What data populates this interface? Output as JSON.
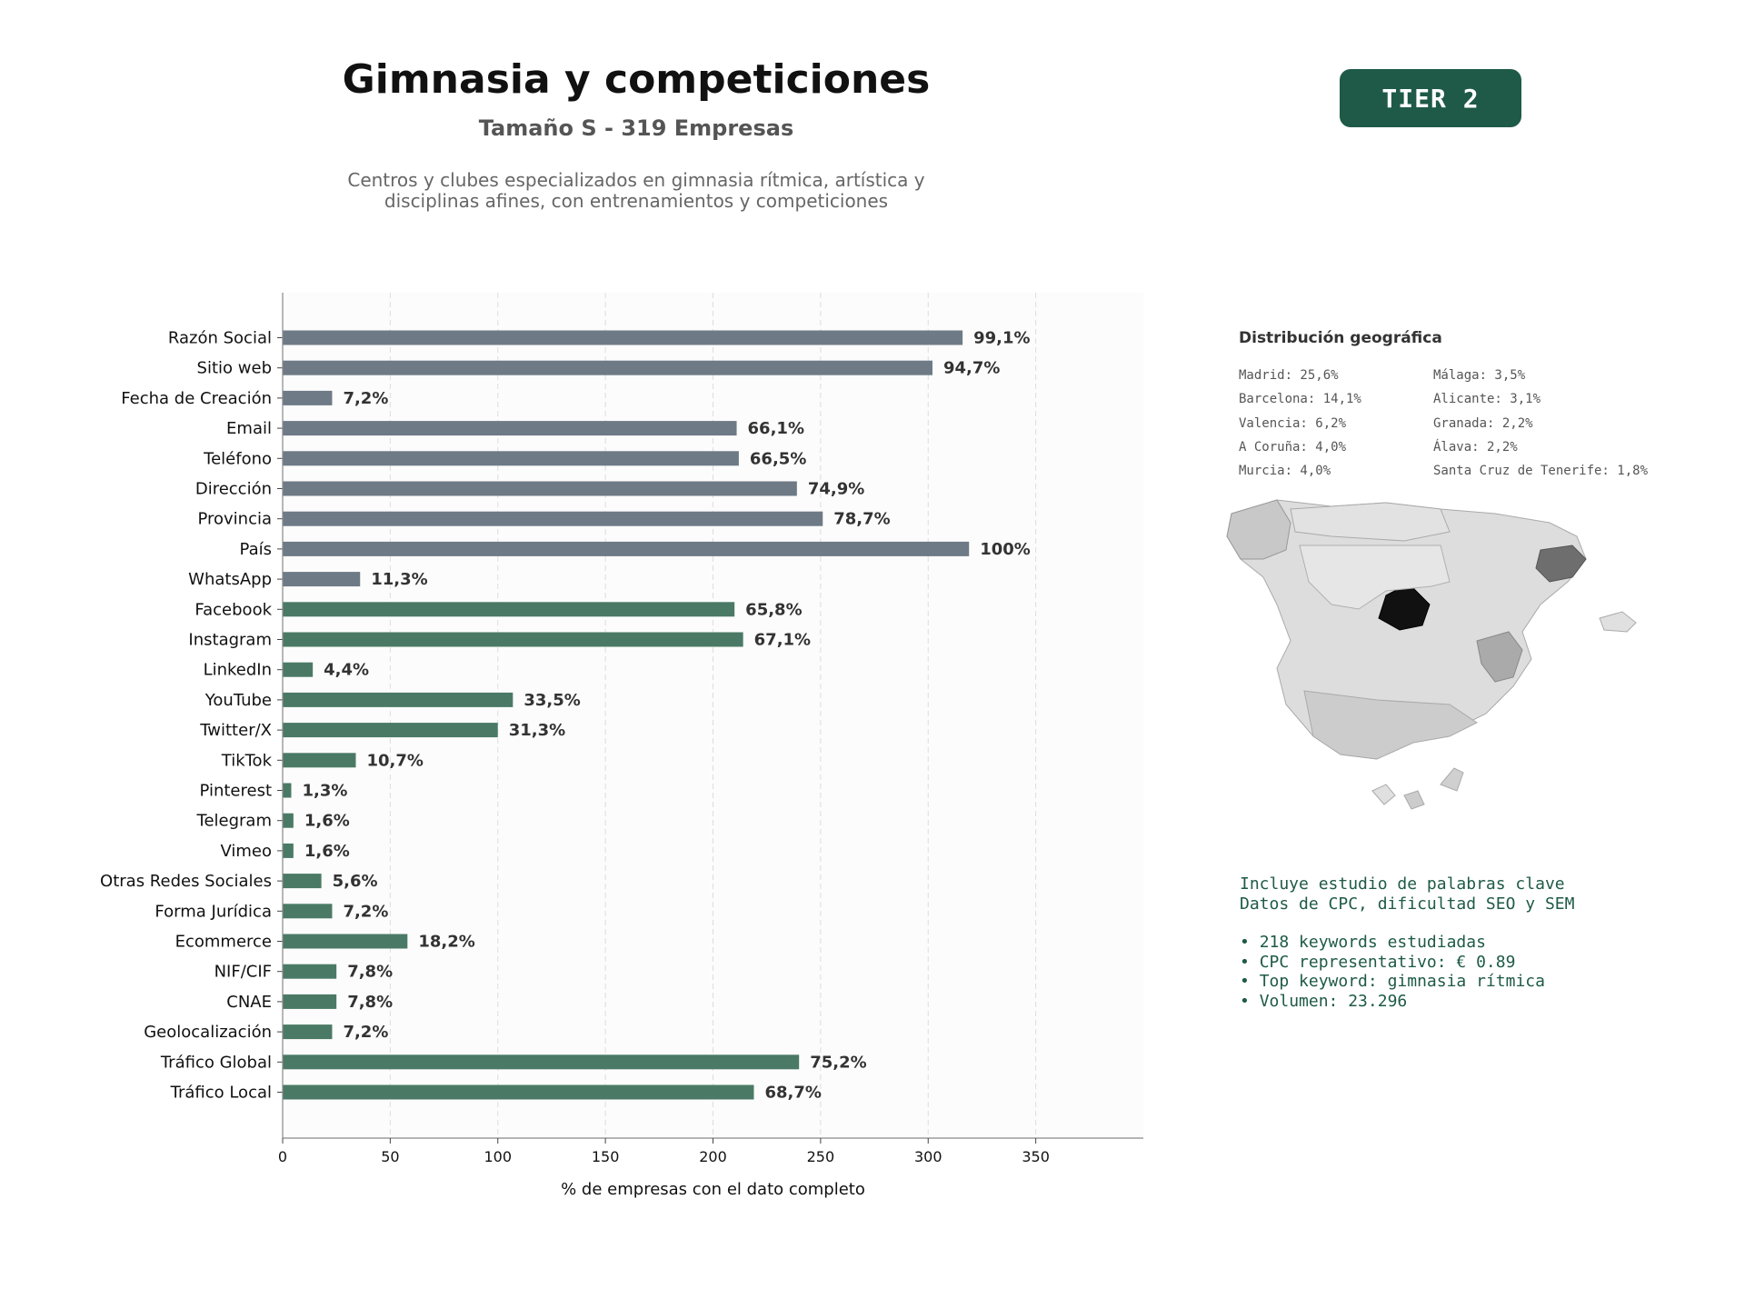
{
  "header": {
    "title": "Gimnasia y competiciones",
    "subtitle": "Tamaño S - 319 Empresas",
    "description_line1": "Centros y clubes especializados en gimnasia rítmica, artística y",
    "description_line2": "disciplinas afines, con entrenamientos y competiciones",
    "tier_badge": "TIER 2"
  },
  "colors": {
    "gray_bar": "#6e7a86",
    "green_bar": "#4a7a65",
    "badge": "#1e5a47",
    "plot_bg": "#fcfcfc"
  },
  "chart_data": {
    "type": "bar",
    "orientation": "horizontal",
    "categories": [
      "Razón Social",
      "Sitio web",
      "Fecha de Creación",
      "Email",
      "Teléfono",
      "Dirección",
      "Provincia",
      "País",
      "WhatsApp",
      "Facebook",
      "Instagram",
      "LinkedIn",
      "YouTube",
      "Twitter/X",
      "TikTok",
      "Pinterest",
      "Telegram",
      "Vimeo",
      "Otras Redes Sociales",
      "Forma Jurídica",
      "Ecommerce",
      "NIF/CIF",
      "CNAE",
      "Geolocalización",
      "Tráfico Global",
      "Tráfico Local"
    ],
    "values": [
      316,
      302,
      23,
      211,
      212,
      239,
      251,
      319,
      36,
      210,
      214,
      14,
      107,
      100,
      34,
      4,
      5,
      5,
      18,
      23,
      58,
      25,
      25,
      23,
      240,
      219
    ],
    "labels": [
      "99,1%",
      "94,7%",
      "7,2%",
      "66,1%",
      "66,5%",
      "74,9%",
      "78,7%",
      "100%",
      "11,3%",
      "65,8%",
      "67,1%",
      "4,4%",
      "33,5%",
      "31,3%",
      "10,7%",
      "1,3%",
      "1,6%",
      "1,6%",
      "5,6%",
      "7,2%",
      "18,2%",
      "7,8%",
      "7,8%",
      "7,2%",
      "75,2%",
      "68,7%"
    ],
    "bar_colors": [
      "gray",
      "gray",
      "gray",
      "gray",
      "gray",
      "gray",
      "gray",
      "gray",
      "gray",
      "green",
      "green",
      "green",
      "green",
      "green",
      "green",
      "green",
      "green",
      "green",
      "green",
      "green",
      "green",
      "green",
      "green",
      "green",
      "green",
      "green"
    ],
    "xlabel": "% de empresas con el dato completo",
    "xlim": [
      0,
      400
    ],
    "xticks": [
      0,
      50,
      100,
      150,
      200,
      250,
      300,
      350
    ],
    "grid": "vertical dashed"
  },
  "geo": {
    "title": "Distribución geográfica",
    "col1": [
      "Madrid: 25,6%",
      "Barcelona: 14,1%",
      "Valencia: 6,2%",
      "A Coruña: 4,0%",
      "Murcia: 4,0%"
    ],
    "col2": [
      "Málaga: 3,5%",
      "Alicante: 3,1%",
      "Granada: 2,2%",
      "Álava: 2,2%",
      "Santa Cruz de Tenerife: 1,8%"
    ]
  },
  "keywords": {
    "line1": "Incluye estudio de palabras clave",
    "line2": "Datos de CPC, dificultad SEO y SEM",
    "bullets": [
      "218 keywords estudiadas",
      "CPC representativo: € 0.89",
      "Top keyword: gimnasia rítmica",
      "Volumen: 23.296"
    ]
  }
}
